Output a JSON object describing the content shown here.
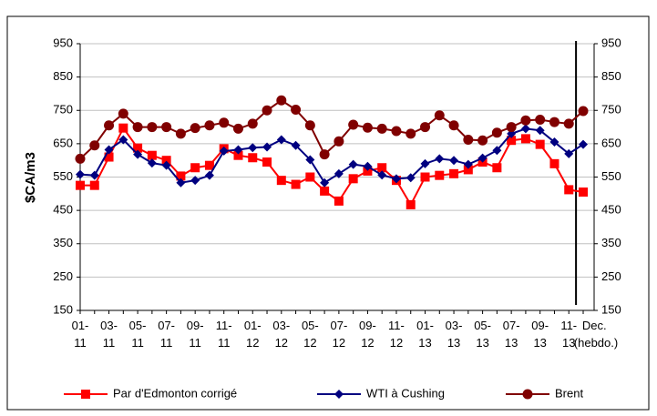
{
  "chart_data": {
    "type": "line",
    "y_label": "$CA/m3",
    "categories": [
      "01-11",
      null,
      "03-11",
      null,
      "05-11",
      null,
      "07-11",
      null,
      "09-11",
      null,
      "11-11",
      null,
      "01-12",
      null,
      "03-12",
      null,
      "05-12",
      null,
      "07-12",
      null,
      "09-12",
      null,
      "11-12",
      null,
      "01-13",
      null,
      "03-13",
      null,
      "05-13",
      null,
      "07-13",
      null,
      "09-13",
      null,
      "11-13",
      "Dec. (hebdo.)"
    ],
    "series": [
      {
        "name": "Par d'Edmonton corrigé",
        "color": "#ff0000",
        "marker": "square",
        "values": [
          525,
          525,
          610,
          697,
          637,
          615,
          600,
          553,
          578,
          585,
          635,
          615,
          608,
          595,
          540,
          528,
          550,
          508,
          478,
          545,
          568,
          578,
          540,
          467,
          550,
          555,
          560,
          572,
          595,
          578,
          660,
          665,
          648,
          590,
          512,
          505
        ]
      },
      {
        "name": "WTI à Cushing",
        "color": "#000080",
        "marker": "diamond",
        "values": [
          558,
          555,
          632,
          662,
          618,
          592,
          585,
          533,
          540,
          555,
          628,
          632,
          638,
          640,
          662,
          645,
          602,
          533,
          560,
          588,
          582,
          556,
          545,
          548,
          590,
          605,
          600,
          588,
          607,
          630,
          680,
          695,
          690,
          655,
          620,
          648
        ]
      },
      {
        "name": "Brent",
        "color": "#800000",
        "marker": "circle",
        "values": [
          605,
          645,
          705,
          740,
          700,
          700,
          700,
          680,
          697,
          705,
          713,
          695,
          710,
          750,
          780,
          752,
          705,
          618,
          657,
          707,
          698,
          695,
          688,
          680,
          700,
          735,
          705,
          662,
          660,
          683,
          700,
          720,
          722,
          715,
          710,
          748
        ]
      }
    ],
    "ylim": [
      150,
      950
    ],
    "yticks": [
      150,
      250,
      350,
      450,
      550,
      650,
      750,
      850,
      950
    ],
    "y2lim": [
      150,
      950
    ],
    "y2ticks": [
      150,
      250,
      350,
      450,
      550,
      650,
      750,
      850,
      950
    ],
    "grid": true,
    "legend": "bottom"
  }
}
